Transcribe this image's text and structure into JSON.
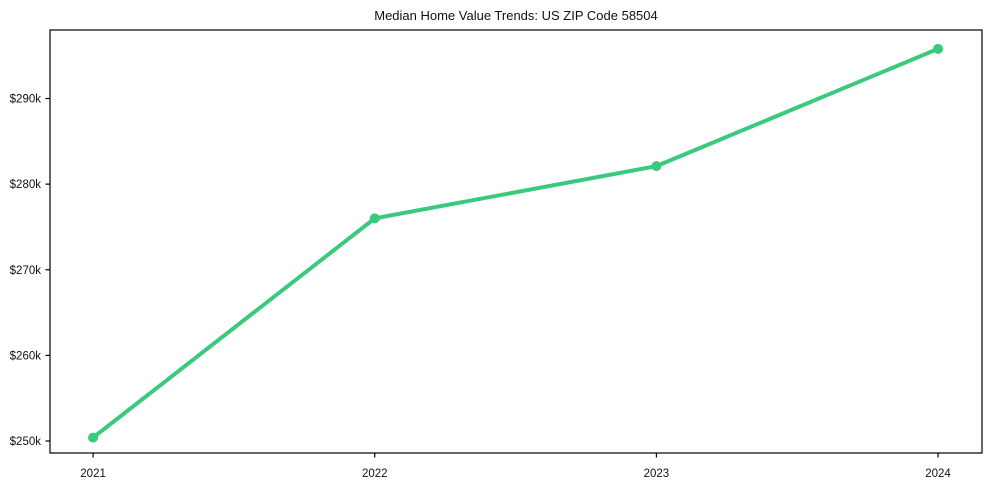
{
  "chart_data": {
    "type": "line",
    "title": "Median Home Value Trends: US ZIP Code 58504",
    "x": [
      2021,
      2022,
      2023,
      2024
    ],
    "x_tick_labels": [
      "2021",
      "2022",
      "2023",
      "2024"
    ],
    "values": [
      250400,
      276000,
      282100,
      295800
    ],
    "y_ticks": [
      250000,
      260000,
      270000,
      280000,
      290000
    ],
    "y_tick_labels": [
      "$250k",
      "$260k",
      "$270k",
      "$280k",
      "$290k"
    ],
    "xlim": [
      2020.847,
      2024.156
    ],
    "ylim": [
      248600,
      298000
    ],
    "line_color": "#3bc97e",
    "axis_color": "#000000",
    "text_color": "#111111",
    "grid": false,
    "legend": false,
    "marker": "circle"
  }
}
